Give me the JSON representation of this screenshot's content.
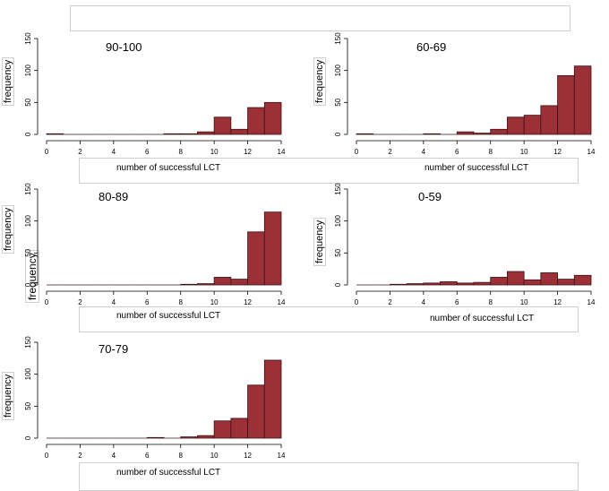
{
  "chart_data": [
    {
      "type": "bar",
      "title": "90-100",
      "xlabel": "number of successful LCT",
      "ylabel": "frequency",
      "xlim": [
        0,
        14
      ],
      "ylim": [
        0,
        150
      ],
      "xticks": [
        "0",
        "2",
        "4",
        "6",
        "8",
        "10",
        "12",
        "14"
      ],
      "yticks": [
        "0",
        "50",
        "100",
        "150"
      ],
      "bins": [
        [
          0,
          1
        ],
        [
          1,
          2
        ],
        [
          2,
          3
        ],
        [
          3,
          4
        ],
        [
          4,
          5
        ],
        [
          5,
          6
        ],
        [
          6,
          7
        ],
        [
          7,
          8
        ],
        [
          8,
          9
        ],
        [
          9,
          10
        ],
        [
          10,
          11
        ],
        [
          11,
          12
        ],
        [
          12,
          13
        ],
        [
          13,
          14
        ]
      ],
      "values": [
        1,
        0,
        0,
        0,
        0,
        0,
        0,
        1,
        1,
        4,
        27,
        8,
        42,
        50
      ]
    },
    {
      "type": "bar",
      "title": "60-69",
      "xlabel": "number of successful LCT",
      "ylabel": "frequency",
      "xlim": [
        0,
        14
      ],
      "ylim": [
        0,
        150
      ],
      "xticks": [
        "0",
        "2",
        "4",
        "6",
        "8",
        "10",
        "12",
        "14"
      ],
      "yticks": [
        "0",
        "50",
        "100",
        "150"
      ],
      "bins": [
        [
          0,
          1
        ],
        [
          1,
          2
        ],
        [
          2,
          3
        ],
        [
          3,
          4
        ],
        [
          4,
          5
        ],
        [
          5,
          6
        ],
        [
          6,
          7
        ],
        [
          7,
          8
        ],
        [
          8,
          9
        ],
        [
          9,
          10
        ],
        [
          10,
          11
        ],
        [
          11,
          12
        ],
        [
          12,
          13
        ],
        [
          13,
          14
        ]
      ],
      "values": [
        1,
        0,
        0,
        0,
        1,
        0,
        4,
        2,
        8,
        27,
        30,
        45,
        92,
        107
      ]
    },
    {
      "type": "bar",
      "title": "80-89",
      "xlabel": "number of successful LCT",
      "ylabel": "frequency",
      "xlim": [
        0,
        14
      ],
      "ylim": [
        0,
        150
      ],
      "xticks": [
        "0",
        "2",
        "4",
        "6",
        "8",
        "10",
        "12",
        "14"
      ],
      "yticks": [
        "0",
        "50",
        "100",
        "150"
      ],
      "bins": [
        [
          0,
          1
        ],
        [
          1,
          2
        ],
        [
          2,
          3
        ],
        [
          3,
          4
        ],
        [
          4,
          5
        ],
        [
          5,
          6
        ],
        [
          6,
          7
        ],
        [
          7,
          8
        ],
        [
          8,
          9
        ],
        [
          9,
          10
        ],
        [
          10,
          11
        ],
        [
          11,
          12
        ],
        [
          12,
          13
        ],
        [
          13,
          14
        ]
      ],
      "values": [
        0,
        0,
        0,
        0,
        0,
        0,
        0,
        0,
        1,
        2,
        12,
        9,
        83,
        114
      ]
    },
    {
      "type": "bar",
      "title": "0-59",
      "xlabel": "number of successful LCT",
      "ylabel": "frequency",
      "xlim": [
        0,
        14
      ],
      "ylim": [
        0,
        150
      ],
      "xticks": [
        "0",
        "2",
        "4",
        "6",
        "8",
        "10",
        "12",
        "14"
      ],
      "yticks": [
        "0",
        "50",
        "100",
        "150"
      ],
      "bins": [
        [
          0,
          1
        ],
        [
          1,
          2
        ],
        [
          2,
          3
        ],
        [
          3,
          4
        ],
        [
          4,
          5
        ],
        [
          5,
          6
        ],
        [
          6,
          7
        ],
        [
          7,
          8
        ],
        [
          8,
          9
        ],
        [
          9,
          10
        ],
        [
          10,
          11
        ],
        [
          11,
          12
        ],
        [
          12,
          13
        ],
        [
          13,
          14
        ]
      ],
      "values": [
        0,
        0,
        1,
        2,
        3,
        5,
        3,
        4,
        12,
        21,
        8,
        19,
        9,
        15
      ]
    },
    {
      "type": "bar",
      "title": "70-79",
      "xlabel": "number of successful LCT",
      "ylabel": "frequency",
      "xlim": [
        0,
        14
      ],
      "ylim": [
        0,
        150
      ],
      "xticks": [
        "0",
        "2",
        "4",
        "6",
        "8",
        "10",
        "12",
        "14"
      ],
      "yticks": [
        "0",
        "50",
        "100",
        "150"
      ],
      "bins": [
        [
          0,
          1
        ],
        [
          1,
          2
        ],
        [
          2,
          3
        ],
        [
          3,
          4
        ],
        [
          4,
          5
        ],
        [
          5,
          6
        ],
        [
          6,
          7
        ],
        [
          7,
          8
        ],
        [
          8,
          9
        ],
        [
          9,
          10
        ],
        [
          10,
          11
        ],
        [
          11,
          12
        ],
        [
          12,
          13
        ],
        [
          13,
          14
        ]
      ],
      "values": [
        0,
        0,
        0,
        0,
        0,
        0,
        1,
        0,
        2,
        4,
        27,
        31,
        83,
        122
      ]
    }
  ],
  "style": {
    "bar_fill": "#9b3036",
    "bar_stroke": "#3a1416",
    "axis_color": "#000000"
  },
  "overlay": {
    "extra_frequency_label": "frequency"
  }
}
